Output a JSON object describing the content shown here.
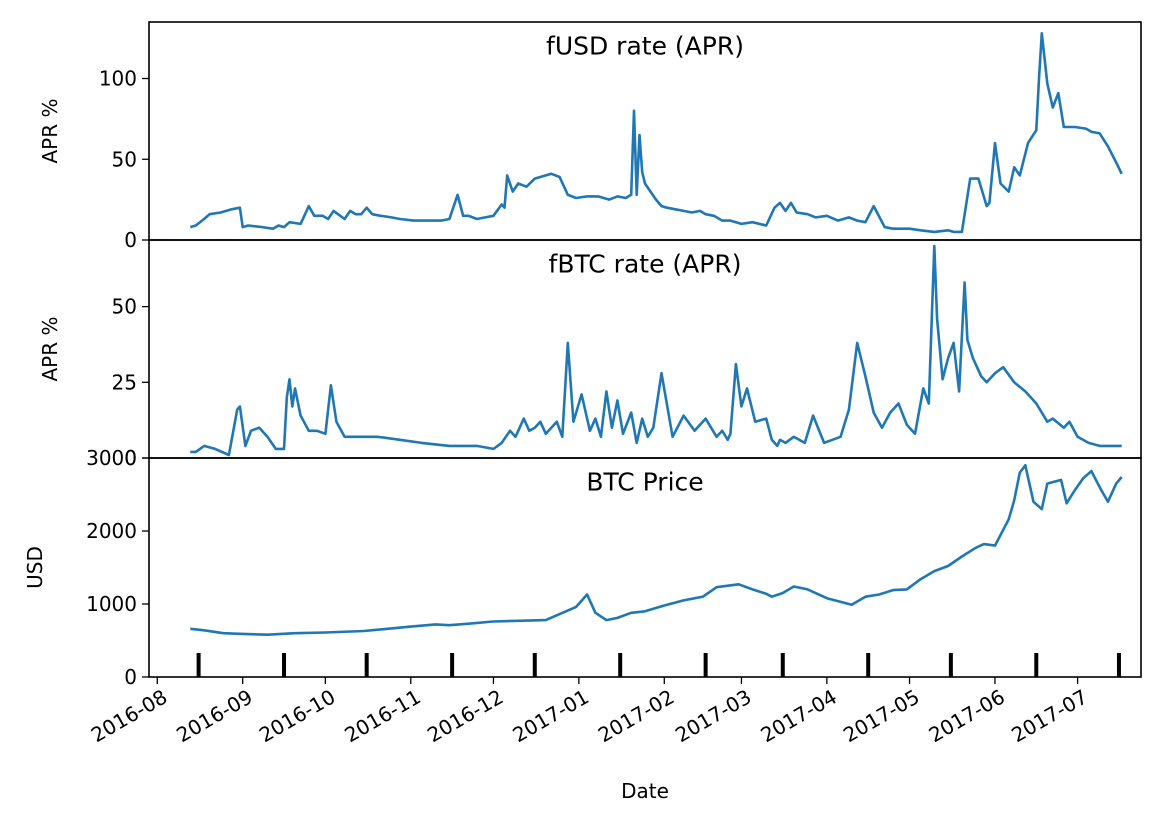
{
  "chart_data": {
    "type": "line",
    "xlabel": "Date",
    "x_tick_labels": [
      "2016-08",
      "2016-09",
      "2016-10",
      "2016-11",
      "2016-12",
      "2017-01",
      "2017-02",
      "2017-03",
      "2017-04",
      "2017-05",
      "2017-06",
      "2017-07"
    ],
    "x_range": [
      "2016-07-29",
      "2017-07-24"
    ],
    "line_color": "#1f77b4",
    "grid": false,
    "legend": "none",
    "panels": [
      {
        "title": "fUSD rate (APR)",
        "ylabel": "APR %",
        "ylim": [
          0,
          135
        ],
        "yticks": [
          0,
          50,
          100
        ],
        "series": [
          {
            "x": [
              "2016-08-13",
              "2016-08-15",
              "2016-08-18",
              "2016-08-20",
              "2016-08-24",
              "2016-08-28",
              "2016-08-31",
              "2016-09-01",
              "2016-09-03",
              "2016-09-08",
              "2016-09-12",
              "2016-09-14",
              "2016-09-16",
              "2016-09-18",
              "2016-09-22",
              "2016-09-25",
              "2016-09-27",
              "2016-09-30",
              "2016-10-02",
              "2016-10-04",
              "2016-10-08",
              "2016-10-10",
              "2016-10-12",
              "2016-10-14",
              "2016-10-16",
              "2016-10-18",
              "2016-10-21",
              "2016-10-25",
              "2016-10-28",
              "2016-11-02",
              "2016-11-08",
              "2016-11-12",
              "2016-11-15",
              "2016-11-18",
              "2016-11-20",
              "2016-11-22",
              "2016-11-25",
              "2016-11-28",
              "2016-12-01",
              "2016-12-04",
              "2016-12-05",
              "2016-12-06",
              "2016-12-08",
              "2016-12-10",
              "2016-12-13",
              "2016-12-16",
              "2016-12-20",
              "2016-12-22",
              "2016-12-25",
              "2016-12-28",
              "2016-12-31",
              "2017-01-04",
              "2017-01-08",
              "2017-01-12",
              "2017-01-15",
              "2017-01-18",
              "2017-01-20",
              "2017-01-21",
              "2017-01-22",
              "2017-01-23",
              "2017-01-24",
              "2017-01-25",
              "2017-01-27",
              "2017-01-29",
              "2017-01-31",
              "2017-02-02",
              "2017-02-05",
              "2017-02-08",
              "2017-02-11",
              "2017-02-14",
              "2017-02-16",
              "2017-02-19",
              "2017-02-22",
              "2017-02-25",
              "2017-03-01",
              "2017-03-05",
              "2017-03-10",
              "2017-03-13",
              "2017-03-15",
              "2017-03-17",
              "2017-03-19",
              "2017-03-21",
              "2017-03-25",
              "2017-03-28",
              "2017-04-01",
              "2017-04-05",
              "2017-04-09",
              "2017-04-12",
              "2017-04-15",
              "2017-04-18",
              "2017-04-22",
              "2017-04-25",
              "2017-04-28",
              "2017-05-01",
              "2017-05-05",
              "2017-05-10",
              "2017-05-15",
              "2017-05-17",
              "2017-05-19",
              "2017-05-20",
              "2017-05-23",
              "2017-05-26",
              "2017-05-29",
              "2017-05-30",
              "2017-06-01",
              "2017-06-03",
              "2017-06-06",
              "2017-06-08",
              "2017-06-10",
              "2017-06-13",
              "2017-06-16",
              "2017-06-17",
              "2017-06-18",
              "2017-06-20",
              "2017-06-22",
              "2017-06-24",
              "2017-06-26",
              "2017-06-30",
              "2017-07-04",
              "2017-07-06",
              "2017-07-09",
              "2017-07-12",
              "2017-07-15",
              "2017-07-17"
            ],
            "y": [
              8,
              9,
              13,
              16,
              17,
              19,
              20,
              8,
              9,
              8,
              7,
              9,
              8,
              11,
              10,
              21,
              15,
              15,
              13,
              18,
              13,
              18,
              16,
              16,
              20,
              16,
              15,
              14,
              13,
              12,
              12,
              12,
              13,
              28,
              15,
              15,
              13,
              14,
              15,
              22,
              20,
              40,
              30,
              35,
              33,
              38,
              40,
              41,
              39,
              28,
              26,
              27,
              27,
              25,
              27,
              26,
              28,
              80,
              28,
              65,
              42,
              35,
              30,
              25,
              21,
              20,
              19,
              18,
              17,
              18,
              16,
              15,
              12,
              12,
              10,
              11,
              9,
              20,
              23,
              18,
              23,
              17,
              16,
              14,
              15,
              12,
              14,
              12,
              11,
              21,
              8,
              7,
              7,
              7,
              6,
              5,
              6,
              5,
              5,
              5,
              38,
              38,
              21,
              23,
              60,
              35,
              30,
              45,
              40,
              60,
              68,
              100,
              128,
              97,
              82,
              91,
              70,
              70,
              69,
              67,
              66,
              58,
              48,
              41
            ]
          }
        ]
      },
      {
        "title": "fBTC rate (APR)",
        "ylabel": "APR %",
        "ylim": [
          0,
          72
        ],
        "yticks": [
          0,
          25,
          50
        ],
        "series": [
          {
            "x": [
              "2016-08-13",
              "2016-08-15",
              "2016-08-18",
              "2016-08-22",
              "2016-08-27",
              "2016-08-30",
              "2016-08-31",
              "2016-09-02",
              "2016-09-04",
              "2016-09-07",
              "2016-09-10",
              "2016-09-13",
              "2016-09-16",
              "2016-09-17",
              "2016-09-18",
              "2016-09-19",
              "2016-09-20",
              "2016-09-22",
              "2016-09-25",
              "2016-09-28",
              "2016-10-01",
              "2016-10-03",
              "2016-10-05",
              "2016-10-08",
              "2016-10-12",
              "2016-10-20",
              "2016-10-28",
              "2016-11-05",
              "2016-11-15",
              "2016-11-25",
              "2016-12-01",
              "2016-12-04",
              "2016-12-07",
              "2016-12-09",
              "2016-12-12",
              "2016-12-14",
              "2016-12-16",
              "2016-12-18",
              "2016-12-20",
              "2016-12-22",
              "2016-12-24",
              "2016-12-26",
              "2016-12-28",
              "2016-12-30",
              "2017-01-02",
              "2017-01-05",
              "2017-01-07",
              "2017-01-09",
              "2017-01-11",
              "2017-01-13",
              "2017-01-15",
              "2017-01-17",
              "2017-01-20",
              "2017-01-22",
              "2017-01-24",
              "2017-01-26",
              "2017-01-28",
              "2017-01-31",
              "2017-02-04",
              "2017-02-08",
              "2017-02-12",
              "2017-02-16",
              "2017-02-20",
              "2017-02-22",
              "2017-02-24",
              "2017-02-25",
              "2017-02-27",
              "2017-03-01",
              "2017-03-03",
              "2017-03-06",
              "2017-03-10",
              "2017-03-12",
              "2017-03-14",
              "2017-03-15",
              "2017-03-17",
              "2017-03-20",
              "2017-03-24",
              "2017-03-27",
              "2017-03-31",
              "2017-04-03",
              "2017-04-06",
              "2017-04-09",
              "2017-04-12",
              "2017-04-15",
              "2017-04-18",
              "2017-04-21",
              "2017-04-24",
              "2017-04-27",
              "2017-04-30",
              "2017-05-03",
              "2017-05-06",
              "2017-05-08",
              "2017-05-10",
              "2017-05-11",
              "2017-05-13",
              "2017-05-15",
              "2017-05-17",
              "2017-05-19",
              "2017-05-21",
              "2017-05-22",
              "2017-05-24",
              "2017-05-27",
              "2017-05-29",
              "2017-06-01",
              "2017-06-04",
              "2017-06-08",
              "2017-06-12",
              "2017-06-16",
              "2017-06-20",
              "2017-06-22",
              "2017-06-26",
              "2017-06-28",
              "2017-07-01",
              "2017-07-05",
              "2017-07-09",
              "2017-07-12",
              "2017-07-17"
            ],
            "y": [
              2,
              2,
              4,
              3,
              1,
              16,
              17,
              4,
              9,
              10,
              7,
              3,
              3,
              20,
              26,
              17,
              23,
              14,
              9,
              9,
              8,
              24,
              12,
              7,
              7,
              7,
              6,
              5,
              4,
              4,
              3,
              5,
              9,
              7,
              13,
              9,
              10,
              12,
              8,
              10,
              12,
              7,
              38,
              12,
              21,
              9,
              13,
              7,
              22,
              10,
              19,
              8,
              15,
              5,
              13,
              7,
              10,
              28,
              7,
              14,
              9,
              13,
              7,
              9,
              6,
              8,
              31,
              17,
              23,
              12,
              13,
              6,
              4,
              6,
              5,
              7,
              5,
              14,
              5,
              6,
              7,
              16,
              38,
              27,
              15,
              10,
              15,
              18,
              11,
              8,
              23,
              18,
              70,
              46,
              26,
              33,
              38,
              22,
              58,
              39,
              33,
              27,
              25,
              28,
              30,
              25,
              22,
              18,
              12,
              13,
              10,
              12,
              7,
              5,
              4,
              4,
              4
            ]
          }
        ]
      },
      {
        "title": "BTC Price",
        "ylabel": "USD",
        "ylim": [
          0,
          3000
        ],
        "yticks": [
          0,
          1000,
          2000,
          3000
        ],
        "series": [
          {
            "x": [
              "2016-08-13",
              "2016-08-18",
              "2016-08-25",
              "2016-09-01",
              "2016-09-10",
              "2016-09-20",
              "2016-10-01",
              "2016-10-15",
              "2016-11-01",
              "2016-11-10",
              "2016-11-15",
              "2016-11-22",
              "2016-12-01",
              "2016-12-10",
              "2016-12-20",
              "2016-12-31",
              "2017-01-04",
              "2017-01-07",
              "2017-01-11",
              "2017-01-15",
              "2017-01-20",
              "2017-01-25",
              "2017-02-01",
              "2017-02-08",
              "2017-02-15",
              "2017-02-20",
              "2017-02-28",
              "2017-03-05",
              "2017-03-10",
              "2017-03-12",
              "2017-03-16",
              "2017-03-20",
              "2017-03-25",
              "2017-04-01",
              "2017-04-05",
              "2017-04-10",
              "2017-04-15",
              "2017-04-20",
              "2017-04-25",
              "2017-04-30",
              "2017-05-05",
              "2017-05-10",
              "2017-05-15",
              "2017-05-20",
              "2017-05-25",
              "2017-05-28",
              "2017-06-01",
              "2017-06-06",
              "2017-06-08",
              "2017-06-10",
              "2017-06-12",
              "2017-06-15",
              "2017-06-18",
              "2017-06-20",
              "2017-06-25",
              "2017-06-27",
              "2017-06-30",
              "2017-07-03",
              "2017-07-06",
              "2017-07-09",
              "2017-07-12",
              "2017-07-15",
              "2017-07-17"
            ],
            "y": [
              660,
              640,
              600,
              590,
              580,
              600,
              610,
              630,
              690,
              720,
              710,
              730,
              760,
              770,
              780,
              960,
              1130,
              880,
              780,
              810,
              880,
              900,
              980,
              1050,
              1100,
              1230,
              1270,
              1200,
              1140,
              1100,
              1150,
              1240,
              1200,
              1080,
              1040,
              990,
              1100,
              1130,
              1190,
              1200,
              1340,
              1450,
              1520,
              1650,
              1770,
              1820,
              1800,
              2160,
              2420,
              2800,
              2900,
              2400,
              2300,
              2650,
              2700,
              2380,
              2560,
              2720,
              2820,
              2600,
              2400,
              2650,
              2740
            ]
          }
        ]
      }
    ]
  }
}
